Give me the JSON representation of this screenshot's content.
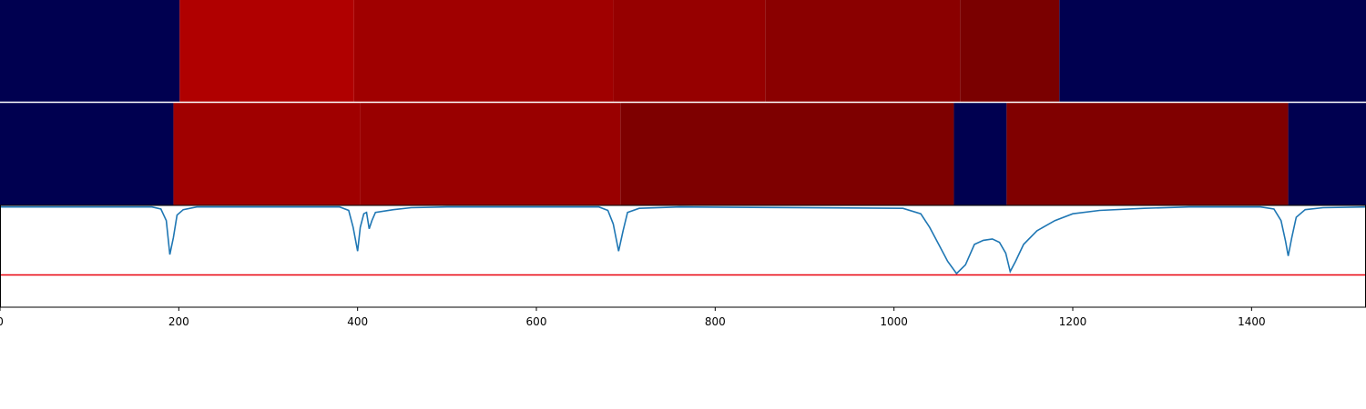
{
  "chart_data": {
    "type": "heatmap",
    "x_range": [
      0,
      1528
    ],
    "x_ticks": [
      0,
      200,
      400,
      600,
      800,
      1000,
      1200,
      1400
    ],
    "tick_labels": [
      "0",
      "200",
      "400",
      "600",
      "800",
      "1000",
      "1200",
      "1400"
    ],
    "heatmap_rows": [
      {
        "segments": [
          {
            "start": 0,
            "end": 201,
            "color": "#000050"
          },
          {
            "start": 201,
            "end": 396,
            "color": "#b00000"
          },
          {
            "start": 396,
            "end": 686,
            "color": "#a00000"
          },
          {
            "start": 686,
            "end": 856,
            "color": "#960000"
          },
          {
            "start": 856,
            "end": 1074,
            "color": "#8a0000"
          },
          {
            "start": 1074,
            "end": 1185,
            "color": "#7a0000"
          },
          {
            "start": 1185,
            "end": 1528,
            "color": "#000050"
          }
        ]
      },
      {
        "segments": [
          {
            "start": 0,
            "end": 194,
            "color": "#000050"
          },
          {
            "start": 194,
            "end": 403,
            "color": "#a00000"
          },
          {
            "start": 403,
            "end": 694,
            "color": "#990000"
          },
          {
            "start": 694,
            "end": 1067,
            "color": "#7e0000"
          },
          {
            "start": 1067,
            "end": 1126,
            "color": "#000050"
          },
          {
            "start": 1126,
            "end": 1441,
            "color": "#800000"
          },
          {
            "start": 1441,
            "end": 1528,
            "color": "#000050"
          }
        ]
      }
    ],
    "signal": {
      "color": "#1f77b4",
      "y_range": [
        -1.0,
        0.05
      ],
      "points": [
        [
          0,
          0.0
        ],
        [
          170,
          0.0
        ],
        [
          180,
          -0.03
        ],
        [
          186,
          -0.2
        ],
        [
          190,
          -0.7
        ],
        [
          194,
          -0.45
        ],
        [
          198,
          -0.12
        ],
        [
          205,
          -0.04
        ],
        [
          220,
          0.0
        ],
        [
          380,
          0.0
        ],
        [
          390,
          -0.05
        ],
        [
          395,
          -0.3
        ],
        [
          400,
          -0.65
        ],
        [
          403,
          -0.3
        ],
        [
          407,
          -0.1
        ],
        [
          410,
          -0.08
        ],
        [
          413,
          -0.32
        ],
        [
          416,
          -0.2
        ],
        [
          420,
          -0.08
        ],
        [
          440,
          -0.04
        ],
        [
          460,
          -0.01
        ],
        [
          500,
          0.0
        ],
        [
          670,
          0.0
        ],
        [
          680,
          -0.05
        ],
        [
          686,
          -0.25
        ],
        [
          692,
          -0.65
        ],
        [
          697,
          -0.35
        ],
        [
          702,
          -0.08
        ],
        [
          715,
          -0.02
        ],
        [
          760,
          0.0
        ],
        [
          1010,
          -0.02
        ],
        [
          1030,
          -0.1
        ],
        [
          1040,
          -0.3
        ],
        [
          1050,
          -0.55
        ],
        [
          1060,
          -0.8
        ],
        [
          1070,
          -0.98
        ],
        [
          1080,
          -0.85
        ],
        [
          1090,
          -0.55
        ],
        [
          1100,
          -0.49
        ],
        [
          1110,
          -0.47
        ],
        [
          1118,
          -0.52
        ],
        [
          1125,
          -0.68
        ],
        [
          1130,
          -0.95
        ],
        [
          1136,
          -0.8
        ],
        [
          1145,
          -0.55
        ],
        [
          1160,
          -0.35
        ],
        [
          1180,
          -0.2
        ],
        [
          1200,
          -0.1
        ],
        [
          1230,
          -0.05
        ],
        [
          1280,
          -0.02
        ],
        [
          1330,
          0.0
        ],
        [
          1410,
          0.0
        ],
        [
          1425,
          -0.03
        ],
        [
          1433,
          -0.2
        ],
        [
          1438,
          -0.5
        ],
        [
          1441,
          -0.72
        ],
        [
          1445,
          -0.45
        ],
        [
          1450,
          -0.15
        ],
        [
          1460,
          -0.04
        ],
        [
          1480,
          -0.01
        ],
        [
          1528,
          0.0
        ]
      ]
    },
    "threshold": {
      "value": -1.0,
      "color": "#e8000b"
    }
  }
}
